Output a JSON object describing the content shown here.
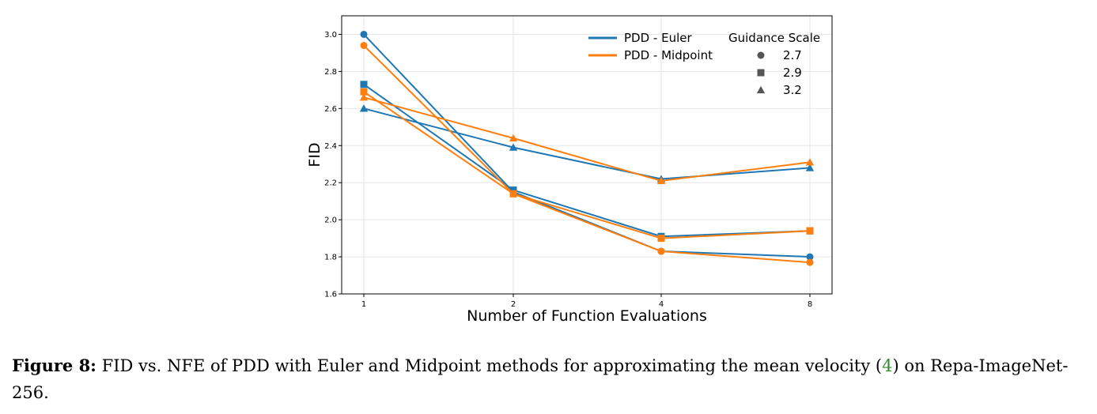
{
  "chart_data": {
    "type": "line",
    "xlabel": "Number of Function Evaluations",
    "ylabel": "FID",
    "x_categories": [
      "1",
      "2",
      "4",
      "8"
    ],
    "ylim": [
      1.6,
      3.1
    ],
    "yticks": [
      "1.6",
      "1.8",
      "2.0",
      "2.2",
      "2.4",
      "2.6",
      "2.8",
      "3.0"
    ],
    "grid": true,
    "legend_position": "top-right",
    "colors": {
      "euler": "#1f77b4",
      "midpoint": "#ff7f0e",
      "marker_gray": "#555555"
    },
    "series": [
      {
        "name": "PDD - Euler",
        "method": "euler",
        "scale": "2.7",
        "marker": "circle",
        "values": [
          3.0,
          2.15,
          1.83,
          1.8
        ]
      },
      {
        "name": "PDD - Euler",
        "method": "euler",
        "scale": "2.9",
        "marker": "square",
        "values": [
          2.73,
          2.16,
          1.91,
          1.94
        ]
      },
      {
        "name": "PDD - Euler",
        "method": "euler",
        "scale": "3.2",
        "marker": "triangle",
        "values": [
          2.6,
          2.39,
          2.22,
          2.28
        ]
      },
      {
        "name": "PDD - Midpoint",
        "method": "midpoint",
        "scale": "2.7",
        "marker": "circle",
        "values": [
          2.94,
          2.14,
          1.83,
          1.77
        ]
      },
      {
        "name": "PDD - Midpoint",
        "method": "midpoint",
        "scale": "2.9",
        "marker": "square",
        "values": [
          2.69,
          2.14,
          1.9,
          1.94
        ]
      },
      {
        "name": "PDD - Midpoint",
        "method": "midpoint",
        "scale": "3.2",
        "marker": "triangle",
        "values": [
          2.66,
          2.44,
          2.21,
          2.31
        ]
      }
    ],
    "legend": {
      "methods": [
        {
          "label": "PDD - Euler",
          "method": "euler"
        },
        {
          "label": "PDD - Midpoint",
          "method": "midpoint"
        }
      ],
      "scale_title": "Guidance Scale",
      "scales": [
        {
          "label": "2.7",
          "marker": "circle"
        },
        {
          "label": "2.9",
          "marker": "square"
        },
        {
          "label": "3.2",
          "marker": "triangle"
        }
      ]
    }
  },
  "caption": {
    "label": "Figure 8:",
    "text_before_ref": " FID vs. NFE of PDD with Euler and Midpoint methods for approximating the mean velocity (",
    "ref": "4",
    "text_after_ref": ") on Repa-ImageNet-256."
  }
}
